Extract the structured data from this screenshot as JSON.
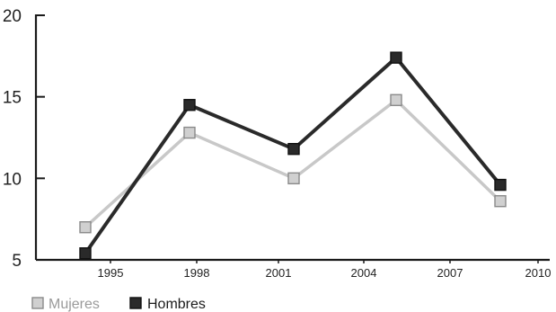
{
  "chart_data": {
    "type": "line",
    "title": "",
    "xlabel": "",
    "ylabel": "",
    "x_ticks": [
      "1995",
      "1998",
      "2001",
      "2004",
      "2007",
      "2010"
    ],
    "y_ticks": [
      "5",
      "10",
      "15",
      "20"
    ],
    "ylim": [
      5,
      20
    ],
    "grid": false,
    "legend_position": "bottom-left",
    "series": [
      {
        "name": "Mujeres",
        "color": "#c8c8c8",
        "marker_fill": "#d0d0d0",
        "values": [
          7.0,
          12.8,
          10.0,
          14.8,
          8.6
        ]
      },
      {
        "name": "Hombres",
        "color": "#2a2a2a",
        "marker_fill": "#2a2a2a",
        "values": [
          5.4,
          14.5,
          11.8,
          17.4,
          9.6
        ]
      }
    ]
  }
}
